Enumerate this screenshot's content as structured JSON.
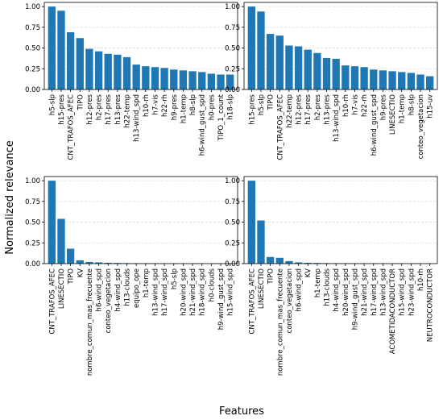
{
  "figure": {
    "ylabel": "Normalized relevance",
    "xlabel": "Features"
  },
  "colors": {
    "bar": "#1f77b4",
    "grid": "#dddddd",
    "axis": "#000000"
  },
  "chart_data": [
    {
      "type": "bar",
      "ylim": [
        0,
        1.05
      ],
      "yticks": [
        "0.00",
        "0.25",
        "0.50",
        "0.75",
        "1.00"
      ],
      "grid": "horizontal dashed",
      "categories": [
        "h5-slp",
        "h15-pres",
        "CNT_TRAFOS_AFEC",
        "TIPO",
        "h12-pres",
        "h2-pres",
        "h17-pres",
        "h13-pres",
        "h22-temp",
        "h13-wind_spd",
        "h10-rh",
        "h7-vis",
        "h22-rh",
        "h9-pres",
        "h1-temp",
        "h8-slp",
        "h6-wind_gust_spd",
        "h0-pres",
        "TIPO_1_count",
        "h18-slp"
      ],
      "values": [
        1.0,
        0.95,
        0.69,
        0.62,
        0.49,
        0.46,
        0.43,
        0.42,
        0.39,
        0.3,
        0.28,
        0.27,
        0.26,
        0.24,
        0.23,
        0.22,
        0.21,
        0.19,
        0.18,
        0.18
      ]
    },
    {
      "type": "bar",
      "ylim": [
        0,
        1.05
      ],
      "yticks": [
        "0.00",
        "0.25",
        "0.50",
        "0.75",
        "1.00"
      ],
      "grid": "horizontal dashed",
      "categories": [
        "h15-pres",
        "h5-slp",
        "TIPO",
        "CNT_TRAFOS_AFEC",
        "h22-temp",
        "h12-pres",
        "h17-pres",
        "h2-pres",
        "h13-pres",
        "h13-wind_spd",
        "h10-rh",
        "h7-vis",
        "h22-rh",
        "h6-wind_gust_spd",
        "h9-pres",
        "LINESECTIO",
        "h1-temp",
        "h8-slp",
        "conteo_vegetacion",
        "h15-uv"
      ],
      "values": [
        1.0,
        0.94,
        0.67,
        0.65,
        0.53,
        0.52,
        0.48,
        0.44,
        0.38,
        0.37,
        0.29,
        0.28,
        0.27,
        0.24,
        0.23,
        0.22,
        0.21,
        0.2,
        0.18,
        0.16
      ]
    },
    {
      "type": "bar",
      "ylim": [
        0,
        1.05
      ],
      "yticks": [
        "0.00",
        "0.25",
        "0.50",
        "0.75",
        "1.00"
      ],
      "grid": "horizontal dashed",
      "categories": [
        "CNT_TRAFOS_AFEC",
        "LINESECTIO",
        "TIPO",
        "KV",
        "nombre_comun_mas_frecuente",
        "h6-wind_spd",
        "conteo_vegetacion",
        "h4-wind_spd",
        "h13-clouds",
        "equipo_ope",
        "h1-temp",
        "h13-wind_spd",
        "h17-wind_spd",
        "h5-slp",
        "h20-wind_spd",
        "h21-wind_spd",
        "h18-wind_spd",
        "h0-clouds",
        "h9-wind_gust_spd",
        "h15-wind_spd"
      ],
      "values": [
        1.0,
        0.54,
        0.18,
        0.04,
        0.02,
        0.015,
        0.01,
        0.008,
        0.006,
        0.005,
        0.004,
        0.004,
        0.003,
        0.003,
        0.003,
        0.002,
        0.002,
        0.002,
        0.002,
        0.002
      ]
    },
    {
      "type": "bar",
      "ylim": [
        0,
        1.05
      ],
      "yticks": [
        "0.00",
        "0.25",
        "0.50",
        "0.75",
        "1.00"
      ],
      "grid": "horizontal dashed",
      "categories": [
        "CNT_TRAFOS_AFEC",
        "LINESECTIO",
        "TIPO",
        "nombre_comun_mas_frecuente",
        "conteo_vegetacion",
        "h6-wind_spd",
        "KV",
        "h1-temp",
        "h13-clouds",
        "h4-wind_spd",
        "h20-wind_spd",
        "h9-wind_gust_spd",
        "h21-wind_spd",
        "h17-wind_spd",
        "h13-wind_spd",
        "ACOMETIDACONDUCTOR",
        "h15-wind_spd",
        "h23-wind_spd",
        "h10-rh",
        "NEUTROCONDUCTOR"
      ],
      "values": [
        1.0,
        0.52,
        0.08,
        0.07,
        0.03,
        0.015,
        0.01,
        0.008,
        0.006,
        0.005,
        0.004,
        0.004,
        0.003,
        0.003,
        0.003,
        0.002,
        0.002,
        0.002,
        0.002,
        0.002
      ]
    }
  ]
}
